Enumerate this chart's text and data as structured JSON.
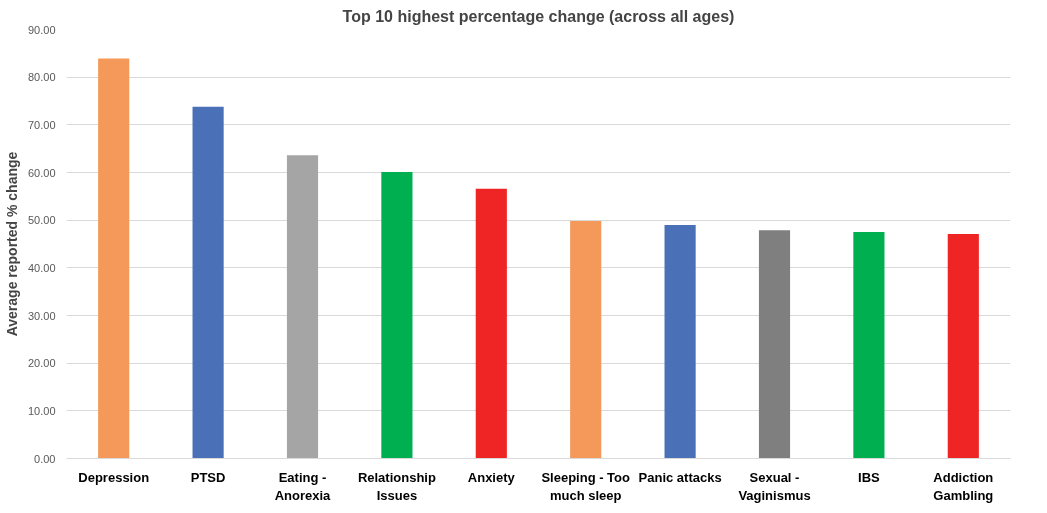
{
  "chart_data": {
    "type": "bar",
    "title": "Top 10 highest percentage change (across all ages)",
    "ylabel": "Average reported % change",
    "categories": [
      "Depression",
      "PTSD",
      "Eating - Anorexia",
      "Relationship Issues",
      "Anxiety",
      "Sleeping - Too much sleep",
      "Panic attacks",
      "Sexual - Vaginismus",
      "IBS",
      "Addiction Gambling"
    ],
    "values": [
      83.9,
      73.8,
      63.6,
      60.1,
      56.6,
      49.8,
      49.0,
      47.9,
      47.5,
      47.1
    ],
    "colors": [
      "#f4995a",
      "#4a70b8",
      "#a5a5a5",
      "#00b050",
      "#ee2524",
      "#f4995a",
      "#4a70b8",
      "#7f7f7f",
      "#00b050",
      "#ee2524"
    ],
    "ylim": [
      0,
      90
    ],
    "yticks": [
      {
        "value": 0,
        "label": "0.00"
      },
      {
        "value": 10,
        "label": "10.00"
      },
      {
        "value": 20,
        "label": "20.00"
      },
      {
        "value": 30,
        "label": "30.00"
      },
      {
        "value": 40,
        "label": "40.00"
      },
      {
        "value": 50,
        "label": "50.00"
      },
      {
        "value": 60,
        "label": "60.00"
      },
      {
        "value": 70,
        "label": "70.00"
      },
      {
        "value": 80,
        "label": "80.00"
      },
      {
        "value": 90,
        "label": "90.00"
      }
    ],
    "grid": "y"
  }
}
